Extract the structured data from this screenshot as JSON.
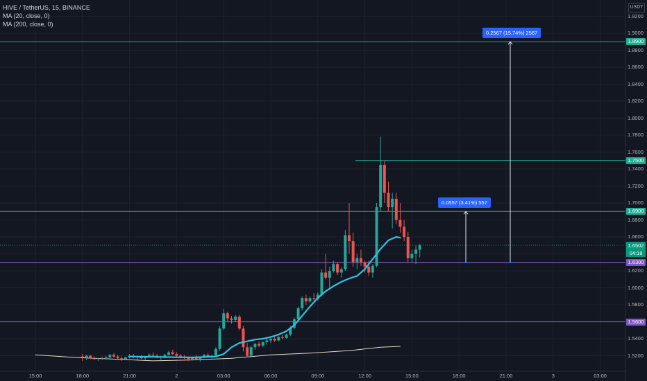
{
  "header": {
    "symbol_line": "HIVE / TetherUS, 15, BINANCE",
    "ma20_label": "MA (20, close, 0)",
    "ma200_label": "MA (200, close, 0)"
  },
  "currency_badge": "USDT",
  "colors": {
    "background": "#131722",
    "up": "#26a69a",
    "down": "#ef5350",
    "ma20": "#2ec4e6",
    "ma200": "#e6dcc8",
    "teal_line": "#22ab94",
    "purple_line": "#7e57c2",
    "measure": "#2962ff"
  },
  "price_lines": {
    "teal": [
      {
        "price": 1.89,
        "label": "1.8900",
        "span": "full"
      },
      {
        "price": 1.75,
        "label": "1.7500",
        "span": "partial"
      },
      {
        "price": 1.69,
        "label": "1.6900",
        "span": "full"
      }
    ],
    "purple": [
      {
        "price": 1.63,
        "label": "1.6300"
      },
      {
        "price": 1.56,
        "label": "1.5600"
      }
    ]
  },
  "current_price": {
    "price": "1.6502",
    "countdown": "04:18"
  },
  "measurements": [
    {
      "label": "0.2567 (15.74%) 2567",
      "from_price": 1.63,
      "to_price": 1.89
    },
    {
      "label": "0.0557 (3.41%) 557",
      "from_price": 1.63,
      "to_price": 1.69
    }
  ],
  "chart_data": {
    "type": "candlestick",
    "title": "HIVE / TetherUS, 15, BINANCE",
    "ylim": [
      1.505,
      1.935
    ],
    "y_ticks": [
      "1.9200",
      "1.9000",
      "1.8800",
      "1.8600",
      "1.8400",
      "1.8200",
      "1.8000",
      "1.7800",
      "1.7600",
      "1.7400",
      "1.7200",
      "1.7000",
      "1.6800",
      "1.6600",
      "1.6400",
      "1.6200",
      "1.6000",
      "1.5800",
      "1.5600",
      "1.5400",
      "1.5200"
    ],
    "x_ticks": [
      "15:00",
      "18:00",
      "21:00",
      "2",
      "03:00",
      "06:00",
      "09:00",
      "12:00",
      "15:00",
      "18:00",
      "21:00",
      "3",
      "03:00"
    ],
    "x_tick_index": [
      0,
      12,
      24,
      36,
      48,
      60,
      72,
      84,
      96,
      108,
      120,
      132,
      144
    ],
    "candles_x_start_index": 12,
    "candles_ohlc": [
      [
        1.519,
        1.522,
        1.514,
        1.518
      ],
      [
        1.518,
        1.521,
        1.515,
        1.52
      ],
      [
        1.52,
        1.521,
        1.516,
        1.517
      ],
      [
        1.517,
        1.519,
        1.515,
        1.516
      ],
      [
        1.516,
        1.518,
        1.514,
        1.517
      ],
      [
        1.517,
        1.519,
        1.515,
        1.516
      ],
      [
        1.516,
        1.52,
        1.515,
        1.518
      ],
      [
        1.518,
        1.522,
        1.517,
        1.521
      ],
      [
        1.521,
        1.523,
        1.518,
        1.519
      ],
      [
        1.519,
        1.521,
        1.516,
        1.517
      ],
      [
        1.517,
        1.519,
        1.514,
        1.516
      ],
      [
        1.516,
        1.519,
        1.515,
        1.518
      ],
      [
        1.518,
        1.522,
        1.517,
        1.52
      ],
      [
        1.52,
        1.522,
        1.517,
        1.518
      ],
      [
        1.518,
        1.52,
        1.515,
        1.519
      ],
      [
        1.519,
        1.521,
        1.516,
        1.517
      ],
      [
        1.517,
        1.52,
        1.515,
        1.519
      ],
      [
        1.519,
        1.523,
        1.518,
        1.521
      ],
      [
        1.521,
        1.524,
        1.519,
        1.52
      ],
      [
        1.52,
        1.522,
        1.517,
        1.518
      ],
      [
        1.518,
        1.52,
        1.515,
        1.519
      ],
      [
        1.519,
        1.522,
        1.518,
        1.521
      ],
      [
        1.521,
        1.526,
        1.52,
        1.524
      ],
      [
        1.524,
        1.527,
        1.521,
        1.522
      ],
      [
        1.522,
        1.524,
        1.519,
        1.52
      ],
      [
        1.52,
        1.522,
        1.517,
        1.519
      ],
      [
        1.519,
        1.521,
        1.516,
        1.518
      ],
      [
        1.518,
        1.519,
        1.514,
        1.516
      ],
      [
        1.516,
        1.519,
        1.515,
        1.518
      ],
      [
        1.518,
        1.521,
        1.515,
        1.516
      ],
      [
        1.516,
        1.519,
        1.513,
        1.518
      ],
      [
        1.518,
        1.522,
        1.517,
        1.521
      ],
      [
        1.521,
        1.523,
        1.518,
        1.519
      ],
      [
        1.519,
        1.521,
        1.516,
        1.52
      ],
      [
        1.52,
        1.53,
        1.519,
        1.528
      ],
      [
        1.528,
        1.555,
        1.526,
        1.552
      ],
      [
        1.552,
        1.575,
        1.55,
        1.57
      ],
      [
        1.57,
        1.572,
        1.56,
        1.564
      ],
      [
        1.564,
        1.567,
        1.558,
        1.562
      ],
      [
        1.562,
        1.568,
        1.56,
        1.566
      ],
      [
        1.566,
        1.568,
        1.55,
        1.552
      ],
      [
        1.552,
        1.555,
        1.525,
        1.53
      ],
      [
        1.53,
        1.535,
        1.518,
        1.52
      ],
      [
        1.52,
        1.532,
        1.518,
        1.53
      ],
      [
        1.53,
        1.535,
        1.527,
        1.534
      ],
      [
        1.534,
        1.537,
        1.53,
        1.532
      ],
      [
        1.532,
        1.537,
        1.53,
        1.536
      ],
      [
        1.536,
        1.54,
        1.533,
        1.538
      ],
      [
        1.538,
        1.542,
        1.535,
        1.54
      ],
      [
        1.54,
        1.543,
        1.536,
        1.538
      ],
      [
        1.538,
        1.543,
        1.537,
        1.542
      ],
      [
        1.542,
        1.545,
        1.539,
        1.541
      ],
      [
        1.541,
        1.546,
        1.54,
        1.545
      ],
      [
        1.545,
        1.555,
        1.543,
        1.553
      ],
      [
        1.553,
        1.565,
        1.551,
        1.563
      ],
      [
        1.563,
        1.578,
        1.561,
        1.576
      ],
      [
        1.576,
        1.59,
        1.573,
        1.588
      ],
      [
        1.588,
        1.592,
        1.58,
        1.584
      ],
      [
        1.584,
        1.59,
        1.582,
        1.588
      ],
      [
        1.588,
        1.594,
        1.585,
        1.587
      ],
      [
        1.587,
        1.595,
        1.585,
        1.592
      ],
      [
        1.592,
        1.622,
        1.59,
        1.618
      ],
      [
        1.618,
        1.64,
        1.61,
        1.612
      ],
      [
        1.612,
        1.625,
        1.6,
        1.62
      ],
      [
        1.62,
        1.632,
        1.618,
        1.628
      ],
      [
        1.628,
        1.63,
        1.615,
        1.618
      ],
      [
        1.618,
        1.624,
        1.612,
        1.622
      ],
      [
        1.622,
        1.668,
        1.62,
        1.662
      ],
      [
        1.662,
        1.7,
        1.64,
        1.655
      ],
      [
        1.655,
        1.665,
        1.625,
        1.63
      ],
      [
        1.63,
        1.64,
        1.622,
        1.635
      ],
      [
        1.635,
        1.645,
        1.626,
        1.63
      ],
      [
        1.63,
        1.632,
        1.618,
        1.625
      ],
      [
        1.625,
        1.632,
        1.614,
        1.618
      ],
      [
        1.618,
        1.628,
        1.612,
        1.626
      ],
      [
        1.626,
        1.7,
        1.624,
        1.695
      ],
      [
        1.695,
        1.778,
        1.69,
        1.745
      ],
      [
        1.745,
        1.75,
        1.7,
        1.712
      ],
      [
        1.712,
        1.725,
        1.69,
        1.695
      ],
      [
        1.695,
        1.712,
        1.67,
        1.705
      ],
      [
        1.705,
        1.712,
        1.675,
        1.68
      ],
      [
        1.68,
        1.7,
        1.665,
        1.672
      ],
      [
        1.672,
        1.68,
        1.655,
        1.66
      ],
      [
        1.66,
        1.666,
        1.63,
        1.635
      ],
      [
        1.635,
        1.645,
        1.63,
        1.64
      ],
      [
        1.64,
        1.65,
        1.628,
        1.645
      ],
      [
        1.645,
        1.652,
        1.636,
        1.65
      ]
    ],
    "ma20": [
      [
        24,
        1.519
      ],
      [
        40,
        1.518
      ],
      [
        46,
        1.519
      ],
      [
        48,
        1.522
      ],
      [
        50,
        1.53
      ],
      [
        52,
        1.535
      ],
      [
        54,
        1.537
      ],
      [
        56,
        1.539
      ],
      [
        58,
        1.54
      ],
      [
        60,
        1.542
      ],
      [
        62,
        1.545
      ],
      [
        64,
        1.549
      ],
      [
        66,
        1.556
      ],
      [
        68,
        1.567
      ],
      [
        70,
        1.578
      ],
      [
        72,
        1.588
      ],
      [
        74,
        1.596
      ],
      [
        76,
        1.602
      ],
      [
        78,
        1.607
      ],
      [
        80,
        1.611
      ],
      [
        82,
        1.614
      ],
      [
        84,
        1.622
      ],
      [
        86,
        1.634
      ],
      [
        88,
        1.646
      ],
      [
        90,
        1.656
      ],
      [
        92,
        1.66
      ],
      [
        93,
        1.659
      ]
    ],
    "ma200": [
      [
        0,
        1.521
      ],
      [
        10,
        1.518
      ],
      [
        20,
        1.516
      ],
      [
        30,
        1.514
      ],
      [
        40,
        1.515
      ],
      [
        50,
        1.517
      ],
      [
        60,
        1.521
      ],
      [
        70,
        1.523
      ],
      [
        80,
        1.526
      ],
      [
        88,
        1.53
      ],
      [
        93,
        1.531
      ]
    ]
  }
}
